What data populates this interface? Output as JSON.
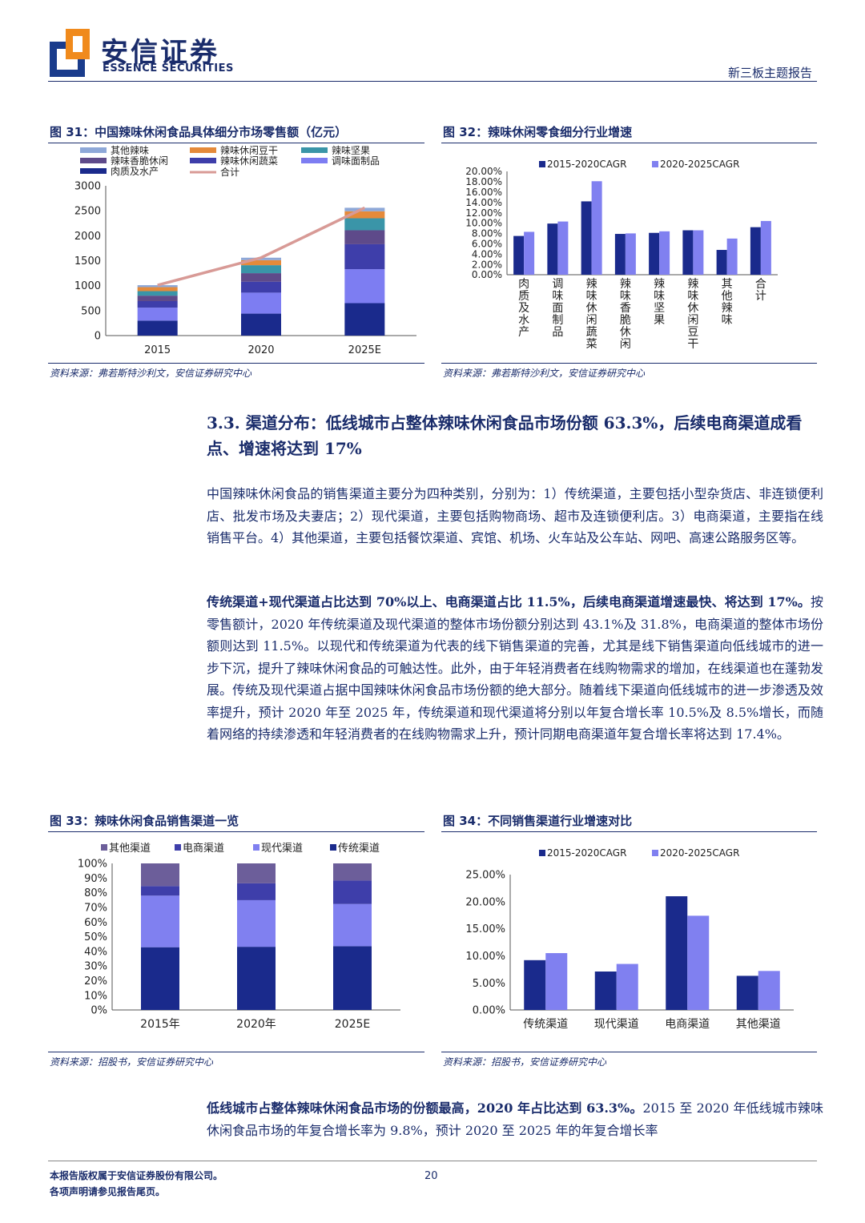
{
  "header": {
    "brand_cn": "安信证券",
    "brand_en": "ESSENCE SECURITIES",
    "report_type": "新三板主题报告",
    "logo_colors": {
      "blue": "#1a3c8c",
      "orange": "#f08a1c"
    }
  },
  "figures": [
    {
      "title": "图 31：中国辣味休闲食品具体细分市场零售额（亿元）",
      "source": "资料来源：弗若斯特沙利文，安信证券研究中心"
    },
    {
      "title": "图 32：辣味休闲零食细分行业增速",
      "source": "资料来源：弗若斯特沙利文，安信证券研究中心"
    },
    {
      "title": "图 33：辣味休闲食品销售渠道一览",
      "source": "资料来源：招股书，安信证券研究中心"
    },
    {
      "title": "图 34：不同销售渠道行业增速对比",
      "source": "资料来源：招股书，安信证券研究中心"
    }
  ],
  "chart_data": [
    {
      "type": "bar",
      "stacked": true,
      "categories": [
        "2015",
        "2020",
        "2025E"
      ],
      "yticks": [
        "0",
        "500",
        "1000",
        "1500",
        "2000",
        "2500",
        "3000"
      ],
      "ylim": [
        0,
        3000
      ],
      "legend_position": "top",
      "series": [
        {
          "name": "肉质及水产",
          "color": "#1a2a8c",
          "values": [
            300,
            440,
            650
          ]
        },
        {
          "name": "调味面制品",
          "color": "#7d7df2",
          "values": [
            260,
            420,
            680
          ]
        },
        {
          "name": "辣味休闲蔬菜",
          "color": "#3e3eaa",
          "values": [
            130,
            220,
            500
          ]
        },
        {
          "name": "辣味香脆休闲",
          "color": "#5e4a8a",
          "values": [
            110,
            170,
            280
          ]
        },
        {
          "name": "辣味坚果",
          "color": "#3a95a8",
          "values": [
            90,
            160,
            240
          ]
        },
        {
          "name": "辣味休闲豆干",
          "color": "#e58a3a",
          "values": [
            80,
            100,
            140
          ]
        },
        {
          "name": "其他辣味",
          "color": "#8ea8d8",
          "values": [
            40,
            50,
            70
          ]
        }
      ],
      "total": {
        "name": "合计",
        "color": "#d89a96",
        "values": [
          1010,
          1560,
          2560
        ]
      }
    },
    {
      "type": "bar",
      "categories": [
        "肉质及水产",
        "调味面制品",
        "辣味休闲蔬菜",
        "辣味香脆休闲",
        "辣味坚果",
        "辣味休闲豆干",
        "其他辣味",
        "合计"
      ],
      "yticks": [
        "0.00%",
        "2.00%",
        "4.00%",
        "6.00%",
        "8.00%",
        "10.00%",
        "12.00%",
        "14.00%",
        "16.00%",
        "18.00%",
        "20.00%"
      ],
      "ylim": [
        0,
        20
      ],
      "legend_position": "top",
      "series": [
        {
          "name": "2015-2020CAGR",
          "color": "#1a2a8c",
          "values": [
            7.5,
            9.9,
            14.2,
            7.9,
            8.1,
            8.6,
            4.8,
            9.2
          ]
        },
        {
          "name": "2020-2025CAGR",
          "color": "#8080f0",
          "values": [
            8.3,
            10.3,
            18.1,
            8.0,
            8.4,
            8.6,
            7.0,
            10.4
          ]
        }
      ]
    },
    {
      "type": "bar",
      "stacked": true,
      "categories": [
        "2015年",
        "2020年",
        "2025E"
      ],
      "yticks": [
        "0%",
        "10%",
        "20%",
        "30%",
        "40%",
        "50%",
        "60%",
        "70%",
        "80%",
        "90%",
        "100%"
      ],
      "ylim": [
        0,
        100
      ],
      "legend_position": "top",
      "legend_order": [
        "其他渠道",
        "电商渠道",
        "现代渠道",
        "传统渠道"
      ],
      "series": [
        {
          "name": "传统渠道",
          "color": "#1a2a8c",
          "values": [
            42.8,
            43.1,
            43.5
          ]
        },
        {
          "name": "现代渠道",
          "color": "#8080f0",
          "values": [
            35.2,
            31.8,
            28.8
          ]
        },
        {
          "name": "电商渠道",
          "color": "#3e3eaa",
          "values": [
            6.5,
            11.5,
            16.0
          ]
        },
        {
          "name": "其他渠道",
          "color": "#6c5e9a",
          "values": [
            15.5,
            13.6,
            11.7
          ]
        }
      ]
    },
    {
      "type": "bar",
      "categories": [
        "传统渠道",
        "现代渠道",
        "电商渠道",
        "其他渠道"
      ],
      "yticks": [
        "0.00%",
        "5.00%",
        "10.00%",
        "15.00%",
        "20.00%",
        "25.00%"
      ],
      "ylim": [
        0,
        25
      ],
      "legend_position": "top",
      "series": [
        {
          "name": "2015-2020CAGR",
          "color": "#1a2a8c",
          "values": [
            9.2,
            7.1,
            21.0,
            6.3
          ]
        },
        {
          "name": "2020-2025CAGR",
          "color": "#8080f0",
          "values": [
            10.5,
            8.5,
            17.4,
            7.2
          ]
        }
      ]
    }
  ],
  "section": {
    "heading": "3.3. 渠道分布：低线城市占整体辣味休闲食品市场份额 63.3%，后续电商渠道成看点、增速将达到 17%",
    "para1": "中国辣味休闲食品的销售渠道主要分为四种类别，分别为：1）传统渠道，主要包括小型杂货店、非连锁便利店、批发市场及夫妻店；2）现代渠道，主要包括购物商场、超市及连锁便利店。3）电商渠道，主要指在线销售平台。4）其他渠道，主要包括餐饮渠道、宾馆、机场、火车站及公车站、网吧、高速公路服务区等。",
    "para2_bold": "传统渠道+现代渠道占比达到 70%以上、电商渠道占比 11.5%，后续电商渠道增速最快、将达到 17%。",
    "para2_rest": "按零售额计，2020 年传统渠道及现代渠道的整体市场份额分别达到 43.1%及 31.8%，电商渠道的整体市场份额则达到 11.5%。以现代和传统渠道为代表的线下销售渠道的完善，尤其是线下销售渠道向低线城市的进一步下沉，提升了辣味休闲食品的可触达性。此外，由于年轻消费者在线购物需求的增加，在线渠道也在蓬勃发展。传统及现代渠道占据中国辣味休闲食品市场份额的绝大部分。随着线下渠道向低线城市的进一步渗透及效率提升，预计 2020 年至 2025 年，传统渠道和现代渠道将分别以年复合增长率 10.5%及 8.5%增长，而随着网络的持续渗透和年轻消费者的在线购物需求上升，预计同期电商渠道年复合增长率将达到 17.4%。",
    "para3_bold": "低线城市占整体辣味休闲食品市场的份额最高，2020 年占比达到 63.3%。",
    "para3_rest": "2015 至 2020 年低线城市辣味休闲食品市场的年复合增长率为 9.8%，预计 2020 至 2025 年的年复合增长率"
  },
  "footer": {
    "copyright_line1": "本报告版权属于安信证券股份有限公司。",
    "copyright_line2": "各项声明请参见报告尾页。",
    "page_number": "20"
  }
}
